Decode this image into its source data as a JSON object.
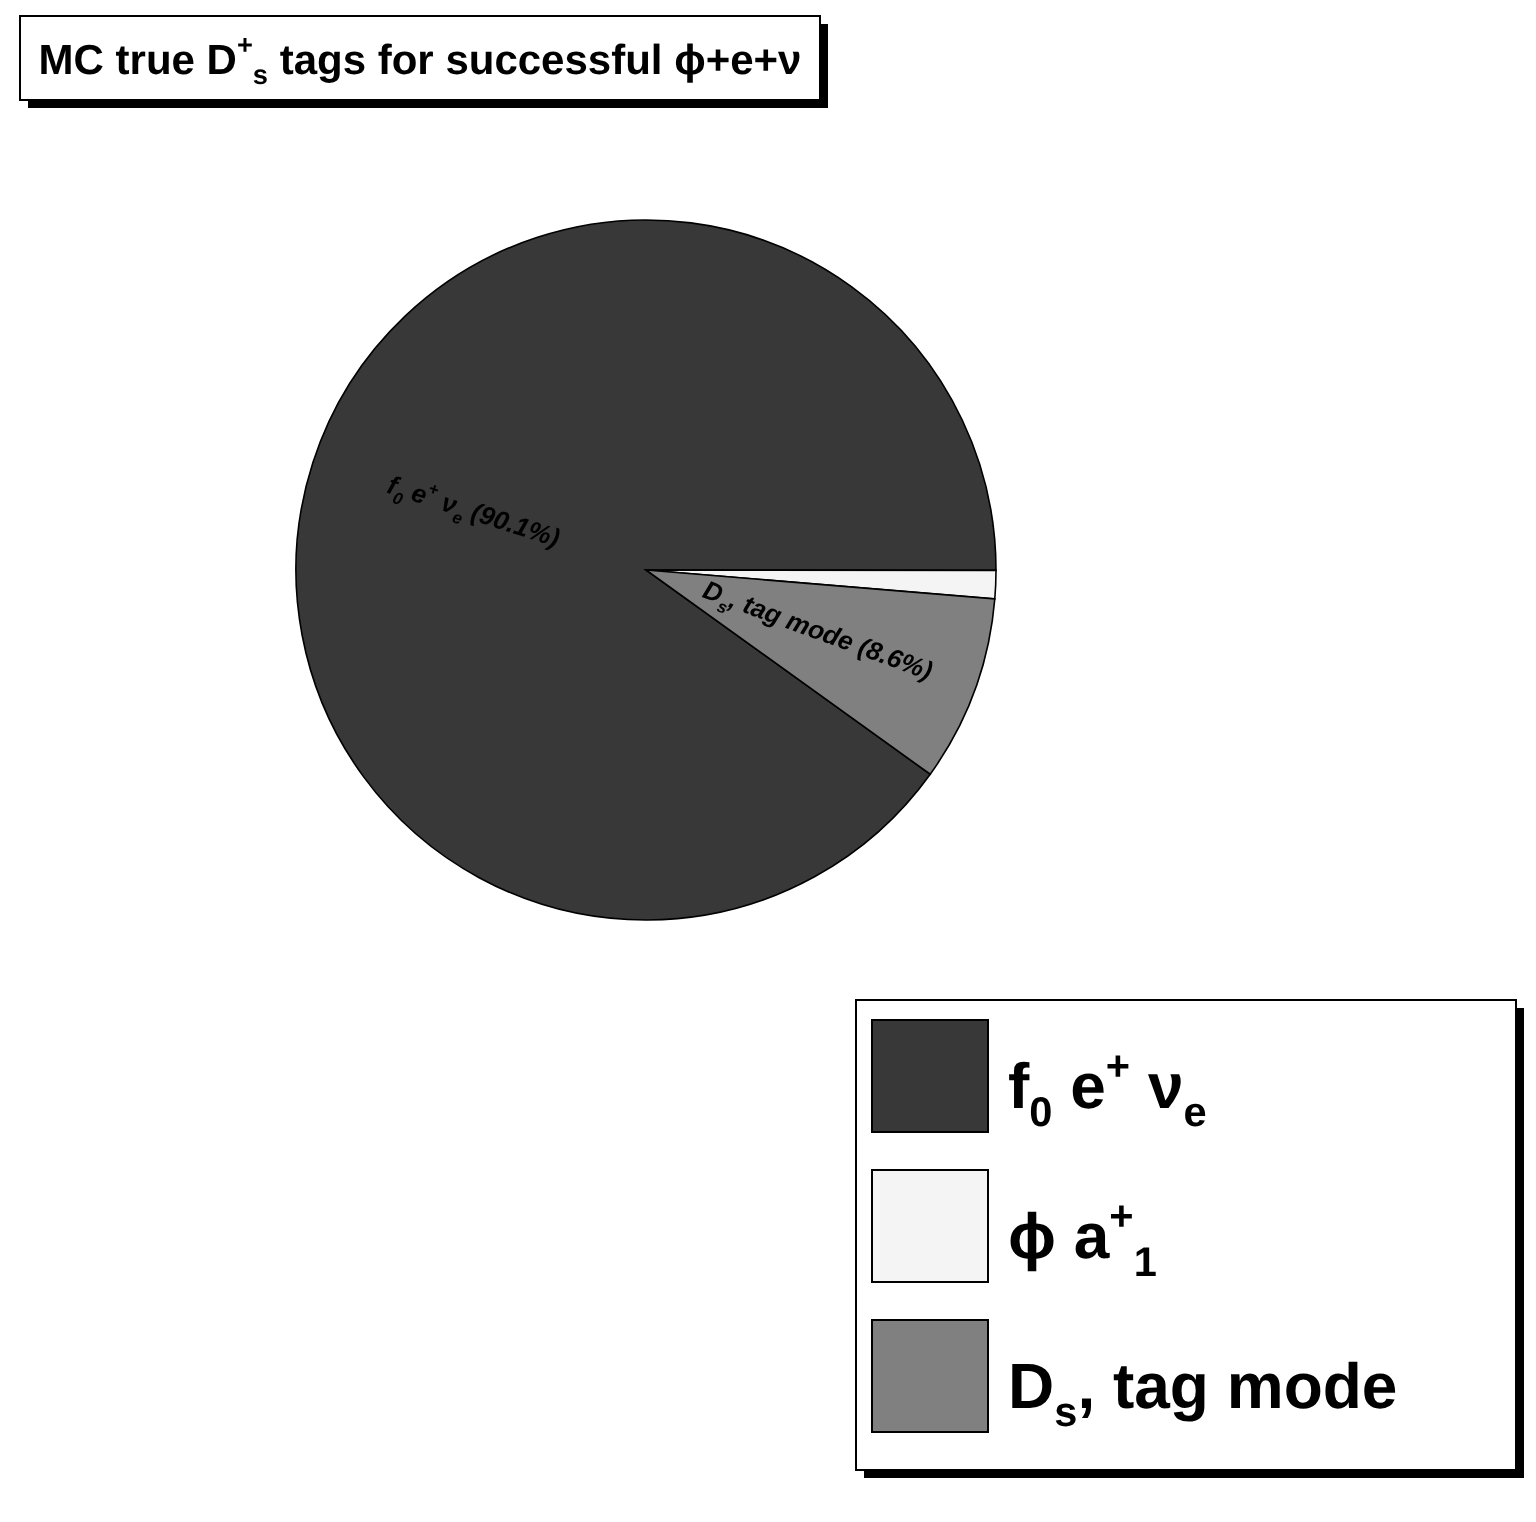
{
  "chart_data": {
    "type": "pie",
    "title": "MC true D$^{+}$$_{s}$ tags for successful ϕ+e+ν",
    "categories": [
      "f$_{0}$ e$^{+}$ ν$_{e}$",
      "ϕ a$^{+}$$_{1}$",
      "D$_{s}$, tag mode"
    ],
    "values": [
      90.1,
      1.3,
      8.6
    ],
    "colors": [
      "#383838",
      "#f4f4f4",
      "#808080"
    ],
    "value_labels": [
      "(90.1%)",
      null,
      "(8.6%)"
    ],
    "legend": "bottom right"
  }
}
